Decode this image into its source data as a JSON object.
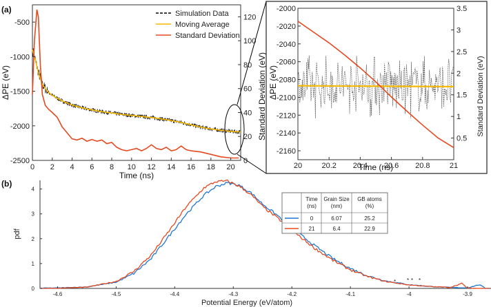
{
  "chart_data": [
    {
      "id": "a_main",
      "panel_label": "(a)",
      "type": "line",
      "xlabel": "Time (ns)",
      "ylabel": "ΔPE (eV)",
      "ylabel_right": "Standard Deviation (eV)",
      "xlim": [
        0,
        21
      ],
      "ylim": [
        -2500,
        -250
      ],
      "ylim_right": [
        0,
        130
      ],
      "x_ticks": [
        "0",
        "2",
        "4",
        "6",
        "8",
        "10",
        "12",
        "14",
        "16",
        "18",
        "20"
      ],
      "y_ticks": [
        "-500",
        "-1000",
        "-1500",
        "-2000",
        "-2500"
      ],
      "y_ticks_right": [
        "0",
        "20",
        "40",
        "60",
        "80",
        "100",
        "120"
      ],
      "legend": [
        "Simulation Data",
        "Moving Average",
        "Standard Deviation"
      ],
      "series": [
        {
          "name": "Moving Average",
          "axis": "left",
          "color": "#f5b800",
          "x": [
            0,
            0.3,
            0.6,
            1,
            1.5,
            2,
            3,
            4,
            5,
            6,
            7,
            8,
            9,
            10,
            11,
            12,
            13,
            14,
            15,
            16,
            17,
            18,
            19,
            20,
            21
          ],
          "y": [
            -900,
            -1050,
            -1230,
            -1400,
            -1500,
            -1560,
            -1640,
            -1700,
            -1740,
            -1770,
            -1795,
            -1815,
            -1835,
            -1850,
            -1865,
            -1880,
            -1900,
            -1925,
            -1950,
            -1985,
            -2020,
            -2045,
            -2065,
            -2080,
            -2090
          ]
        },
        {
          "name": "Standard Deviation",
          "axis": "right",
          "color": "#e5481f",
          "x": [
            0,
            0.2,
            0.45,
            0.6,
            0.8,
            1,
            1.3,
            1.6,
            2,
            2.5,
            3,
            3.4,
            4,
            4.5,
            5,
            5.5,
            6,
            6.5,
            7,
            7.5,
            8,
            8.5,
            9,
            9.5,
            10,
            10.5,
            11,
            11.5,
            12,
            12.5,
            13,
            13.5,
            14,
            14.5,
            15,
            15.5,
            16,
            17,
            18,
            19,
            20,
            20.8
          ],
          "y": [
            55,
            100,
            126,
            120,
            80,
            55,
            46,
            43,
            40,
            36,
            28,
            24,
            18,
            17,
            18.5,
            16,
            17.5,
            16,
            17,
            14,
            15,
            11,
            9,
            8,
            9,
            10,
            8,
            10,
            13,
            10,
            9,
            11,
            8,
            9,
            12,
            9,
            8,
            7,
            5,
            3,
            2,
            2
          ]
        }
      ],
      "noise_band": {
        "name": "Simulation Data",
        "color": "#000000",
        "amplitude_eV": 30
      }
    },
    {
      "id": "a_inset",
      "type": "line",
      "xlabel": "Time (ns)",
      "ylabel": "ΔPE (eV)",
      "ylabel_right": "Standard Deviation (eV)",
      "xlim": [
        20,
        21
      ],
      "ylim": [
        -2170,
        -2000
      ],
      "ylim_right": [
        0,
        3.5
      ],
      "x_ticks": [
        "20",
        "20.2",
        "20.4",
        "20.6",
        "20.8",
        "21"
      ],
      "y_ticks": [
        "-2000",
        "-2020",
        "-2040",
        "-2060",
        "-2080",
        "-2100",
        "-2120",
        "-2140",
        "-2160"
      ],
      "y_ticks_right": [
        "0.5",
        "1",
        "1.5",
        "2",
        "2.5",
        "3",
        "3.5"
      ],
      "series": [
        {
          "name": "Moving Average",
          "axis": "left",
          "color": "#f5b800",
          "x": [
            20,
            21
          ],
          "y": [
            -2087,
            -2088
          ]
        },
        {
          "name": "Standard Deviation",
          "axis": "right",
          "color": "#e5481f",
          "x": [
            20,
            20.1,
            20.2,
            20.3,
            20.4,
            20.5,
            20.6,
            20.7,
            20.8,
            20.9,
            21
          ],
          "y": [
            3.2,
            2.95,
            2.7,
            2.42,
            2.12,
            1.8,
            1.45,
            1.12,
            0.8,
            0.5,
            0.28
          ]
        }
      ],
      "noise_band": {
        "name": "Simulation Data",
        "color": "#444444",
        "amplitude_eV": 32
      }
    },
    {
      "id": "b_pdf",
      "panel_label": "(b)",
      "type": "line",
      "xlabel": "Potential Energy (eV/atom)",
      "ylabel": "pdf",
      "xlim": [
        -4.63,
        -3.86
      ],
      "ylim": [
        0,
        4.35
      ],
      "x_ticks": [
        "-4.6",
        "-4.5",
        "-4.4",
        "-4.3",
        "-4.2",
        "-4.1",
        "-4",
        "-3.9"
      ],
      "y_ticks": [
        "0",
        "1",
        "2",
        "3",
        "4"
      ],
      "series": [
        {
          "name": "0 ns",
          "color": "#1f77d4",
          "x": [
            -4.63,
            -4.6,
            -4.55,
            -4.5,
            -4.47,
            -4.44,
            -4.41,
            -4.38,
            -4.35,
            -4.33,
            -4.31,
            -4.29,
            -4.27,
            -4.25,
            -4.22,
            -4.19,
            -4.16,
            -4.13,
            -4.1,
            -4.07,
            -4.04,
            -4.0,
            -3.96,
            -3.93,
            -3.9,
            -3.88,
            -3.87,
            -3.86
          ],
          "y": [
            0.01,
            0.02,
            0.06,
            0.25,
            0.6,
            1.2,
            2.1,
            3.0,
            3.75,
            4.1,
            4.25,
            4.15,
            3.85,
            3.4,
            2.85,
            2.25,
            1.7,
            1.2,
            0.8,
            0.5,
            0.3,
            0.15,
            0.07,
            0.04,
            0.02,
            0.15,
            0.01,
            0
          ]
        },
        {
          "name": "21 ns",
          "color": "#e5481f",
          "x": [
            -4.63,
            -4.6,
            -4.55,
            -4.5,
            -4.47,
            -4.44,
            -4.41,
            -4.38,
            -4.35,
            -4.33,
            -4.31,
            -4.29,
            -4.27,
            -4.25,
            -4.22,
            -4.19,
            -4.16,
            -4.13,
            -4.1,
            -4.07,
            -4.04,
            -4.0,
            -3.96,
            -3.93,
            -3.91,
            -3.9,
            -3.88,
            -3.86
          ],
          "y": [
            0,
            0.01,
            0.05,
            0.28,
            0.68,
            1.35,
            2.3,
            3.3,
            4.05,
            4.3,
            4.32,
            4.12,
            3.78,
            3.3,
            2.75,
            2.15,
            1.6,
            1.13,
            0.75,
            0.47,
            0.28,
            0.14,
            0.07,
            0.04,
            0.2,
            0.01,
            0,
            0
          ]
        }
      ],
      "table": {
        "headers": [
          "Time (ns)",
          "Grain Size (nm)",
          "GB atoms (%)"
        ],
        "rows": [
          {
            "time": "0",
            "grain": "6.07",
            "gb": "25.2",
            "color": "#1f77d4"
          },
          {
            "time": "21",
            "grain": "6.4",
            "gb": "22.9",
            "color": "#e5481f"
          }
        ]
      }
    }
  ]
}
